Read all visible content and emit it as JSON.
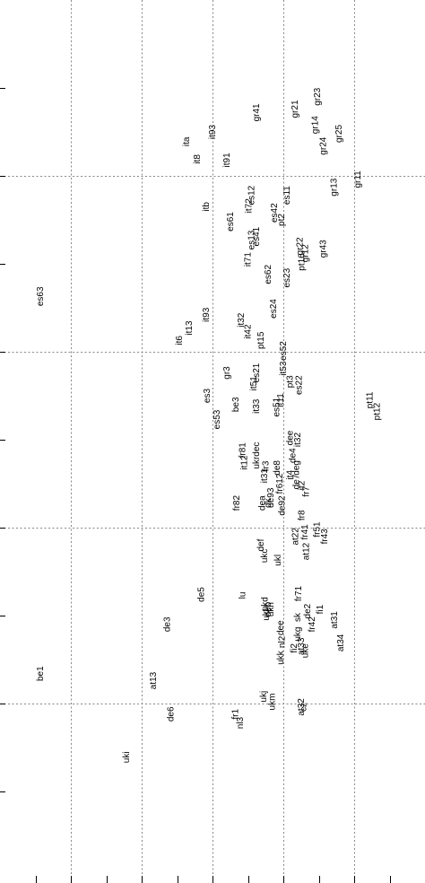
{
  "chart_data": {
    "type": "scatter",
    "orientation": "rotated-90",
    "title": "",
    "xlabel": "",
    "ylabel": "",
    "grid": true,
    "xlim": [
      0,
      6
    ],
    "ylim": [
      0,
      10
    ],
    "points": [
      {
        "label": "uki",
        "x": 1.82,
        "y": 8.61
      },
      {
        "label": "be1",
        "x": 0.61,
        "y": 7.66
      },
      {
        "label": "at13",
        "x": 2.2,
        "y": 7.74
      },
      {
        "label": "de6",
        "x": 2.45,
        "y": 8.12
      },
      {
        "label": "de3",
        "x": 2.4,
        "y": 7.1
      },
      {
        "label": "de5",
        "x": 2.88,
        "y": 6.76
      },
      {
        "label": "fr1",
        "x": 3.36,
        "y": 8.12
      },
      {
        "label": "nl3",
        "x": 3.43,
        "y": 8.22
      },
      {
        "label": "ukj",
        "x": 3.76,
        "y": 7.92
      },
      {
        "label": "lu",
        "x": 3.46,
        "y": 6.77
      },
      {
        "label": "es63",
        "x": 0.61,
        "y": 3.37
      },
      {
        "label": "ita",
        "x": 2.67,
        "y": 1.61
      },
      {
        "label": "it8",
        "x": 2.82,
        "y": 1.81
      },
      {
        "label": "it93",
        "x": 3.04,
        "y": 1.5
      },
      {
        "label": "itb",
        "x": 2.95,
        "y": 2.35
      },
      {
        "label": "it91",
        "x": 3.24,
        "y": 1.82
      },
      {
        "label": "es61",
        "x": 3.29,
        "y": 2.52
      },
      {
        "label": "it6",
        "x": 2.57,
        "y": 3.87
      },
      {
        "label": "it13",
        "x": 2.71,
        "y": 3.73
      },
      {
        "label": "it93b",
        "x": 2.95,
        "y": 3.58
      },
      {
        "label": "es53",
        "x": 3.1,
        "y": 4.77
      },
      {
        "label": "es3",
        "x": 2.96,
        "y": 4.5
      },
      {
        "label": "gr3",
        "x": 3.24,
        "y": 4.24
      },
      {
        "label": "be3",
        "x": 3.37,
        "y": 4.6
      },
      {
        "label": "it12",
        "x": 3.49,
        "y": 5.26
      },
      {
        "label": "fr81",
        "x": 3.46,
        "y": 5.12
      },
      {
        "label": "fr82",
        "x": 3.38,
        "y": 5.72
      },
      {
        "label": "it32",
        "x": 3.44,
        "y": 3.64
      },
      {
        "label": "it42",
        "x": 3.54,
        "y": 3.77
      },
      {
        "label": "it33",
        "x": 3.66,
        "y": 4.62
      },
      {
        "label": "it51",
        "x": 3.62,
        "y": 4.36
      },
      {
        "label": "pt15",
        "x": 3.72,
        "y": 3.87
      },
      {
        "label": "ukrdec",
        "x": 3.66,
        "y": 5.18
      },
      {
        "label": "it31",
        "x": 3.77,
        "y": 5.41
      },
      {
        "label": "fr3",
        "x": 3.79,
        "y": 5.3
      },
      {
        "label": "de8",
        "x": 3.95,
        "y": 5.32
      },
      {
        "label": "dea",
        "x": 3.74,
        "y": 5.72
      },
      {
        "label": "dk",
        "x": 3.82,
        "y": 5.72
      },
      {
        "label": "de93",
        "x": 3.86,
        "y": 5.66
      },
      {
        "label": "fr612",
        "x": 3.99,
        "y": 5.5
      },
      {
        "label": "de92",
        "x": 4.02,
        "y": 5.75
      },
      {
        "label": "ukc",
        "x": 3.77,
        "y": 6.32
      },
      {
        "label": "def",
        "x": 3.72,
        "y": 6.2
      },
      {
        "label": "ukl",
        "x": 3.96,
        "y": 6.37
      },
      {
        "label": "ukd",
        "x": 3.78,
        "y": 6.87
      },
      {
        "label": "ukf",
        "x": 3.8,
        "y": 6.99
      },
      {
        "label": "deb",
        "x": 3.82,
        "y": 6.93
      },
      {
        "label": "ukh",
        "x": 3.86,
        "y": 6.93
      },
      {
        "label": "dee2",
        "x": 4.0,
        "y": 7.14
      },
      {
        "label": "ukk",
        "x": 4.0,
        "y": 7.48
      },
      {
        "label": "nl2",
        "x": 4.02,
        "y": 7.3
      },
      {
        "label": "fi2",
        "x": 4.19,
        "y": 7.37
      },
      {
        "label": "ukg",
        "x": 4.24,
        "y": 7.21
      },
      {
        "label": "sk",
        "x": 4.24,
        "y": 7.02
      },
      {
        "label": "at33",
        "x": 4.29,
        "y": 7.35
      },
      {
        "label": "uke",
        "x": 4.35,
        "y": 7.4
      },
      {
        "label": "ukm",
        "x": 3.88,
        "y": 7.98
      },
      {
        "label": "at32",
        "x": 4.29,
        "y": 8.04
      },
      {
        "label": "cz",
        "x": 4.32,
        "y": 8.04
      },
      {
        "label": "at22",
        "x": 4.21,
        "y": 6.1
      },
      {
        "label": "at12",
        "x": 4.36,
        "y": 6.27
      },
      {
        "label": "fr41",
        "x": 4.34,
        "y": 6.05
      },
      {
        "label": "fr43",
        "x": 4.62,
        "y": 6.1
      },
      {
        "label": "fr51",
        "x": 4.51,
        "y": 6.02
      },
      {
        "label": "fr71",
        "x": 4.25,
        "y": 6.75
      },
      {
        "label": "de2",
        "x": 4.38,
        "y": 6.95
      },
      {
        "label": "fr42",
        "x": 4.44,
        "y": 7.1
      },
      {
        "label": "fi1",
        "x": 4.56,
        "y": 6.93
      },
      {
        "label": "at31",
        "x": 4.76,
        "y": 7.05
      },
      {
        "label": "at34",
        "x": 4.85,
        "y": 7.31
      },
      {
        "label": "es12",
        "x": 3.59,
        "y": 2.22
      },
      {
        "label": "it72",
        "x": 3.55,
        "y": 2.34
      },
      {
        "label": "es42",
        "x": 3.91,
        "y": 2.42
      },
      {
        "label": "es11",
        "x": 4.09,
        "y": 2.22
      },
      {
        "label": "pt2",
        "x": 4.01,
        "y": 2.5
      },
      {
        "label": "es41",
        "x": 3.66,
        "y": 2.69
      },
      {
        "label": "es13",
        "x": 3.59,
        "y": 2.73
      },
      {
        "label": "it71",
        "x": 3.54,
        "y": 2.95
      },
      {
        "label": "es62",
        "x": 3.82,
        "y": 3.12
      },
      {
        "label": "es23",
        "x": 4.09,
        "y": 3.16
      },
      {
        "label": "es24",
        "x": 3.9,
        "y": 3.51
      },
      {
        "label": "es52",
        "x": 4.04,
        "y": 3.99
      },
      {
        "label": "es21",
        "x": 3.66,
        "y": 4.24
      },
      {
        "label": "it53",
        "x": 4.04,
        "y": 4.19
      },
      {
        "label": "pt3",
        "x": 4.13,
        "y": 4.34
      },
      {
        "label": "es22",
        "x": 4.26,
        "y": 4.38
      },
      {
        "label": "it11",
        "x": 4.0,
        "y": 4.55
      },
      {
        "label": "es51",
        "x": 3.94,
        "y": 4.63
      },
      {
        "label": "dee",
        "x": 4.13,
        "y": 4.98
      },
      {
        "label": "it32b",
        "x": 4.24,
        "y": 5.0
      },
      {
        "label": "de4",
        "x": 4.17,
        "y": 5.18
      },
      {
        "label": "it4",
        "x": 4.13,
        "y": 5.4
      },
      {
        "label": "de7",
        "x": 4.22,
        "y": 5.48
      },
      {
        "label": "it2",
        "x": 4.3,
        "y": 5.52
      },
      {
        "label": "deg",
        "x": 4.22,
        "y": 5.32
      },
      {
        "label": "gr41",
        "x": 3.66,
        "y": 1.28
      },
      {
        "label": "gr21",
        "x": 4.2,
        "y": 1.24
      },
      {
        "label": "gr23",
        "x": 4.52,
        "y": 1.1
      },
      {
        "label": "gr14",
        "x": 4.49,
        "y": 1.42
      },
      {
        "label": "gr24",
        "x": 4.6,
        "y": 1.66
      },
      {
        "label": "gr25",
        "x": 4.82,
        "y": 1.52
      },
      {
        "label": "gr13",
        "x": 4.75,
        "y": 2.13
      },
      {
        "label": "gr11",
        "x": 5.09,
        "y": 2.04
      },
      {
        "label": "gr22",
        "x": 4.27,
        "y": 2.8
      },
      {
        "label": "gr12",
        "x": 4.35,
        "y": 2.88
      },
      {
        "label": "pt16",
        "x": 4.3,
        "y": 2.98
      },
      {
        "label": "gr43",
        "x": 4.6,
        "y": 2.83
      },
      {
        "label": "pt11",
        "x": 5.26,
        "y": 4.55
      },
      {
        "label": "pt12",
        "x": 5.36,
        "y": 4.68
      },
      {
        "label": "fr7",
        "x": 4.36,
        "y": 5.59
      },
      {
        "label": "fr8",
        "x": 4.3,
        "y": 5.86
      }
    ]
  }
}
